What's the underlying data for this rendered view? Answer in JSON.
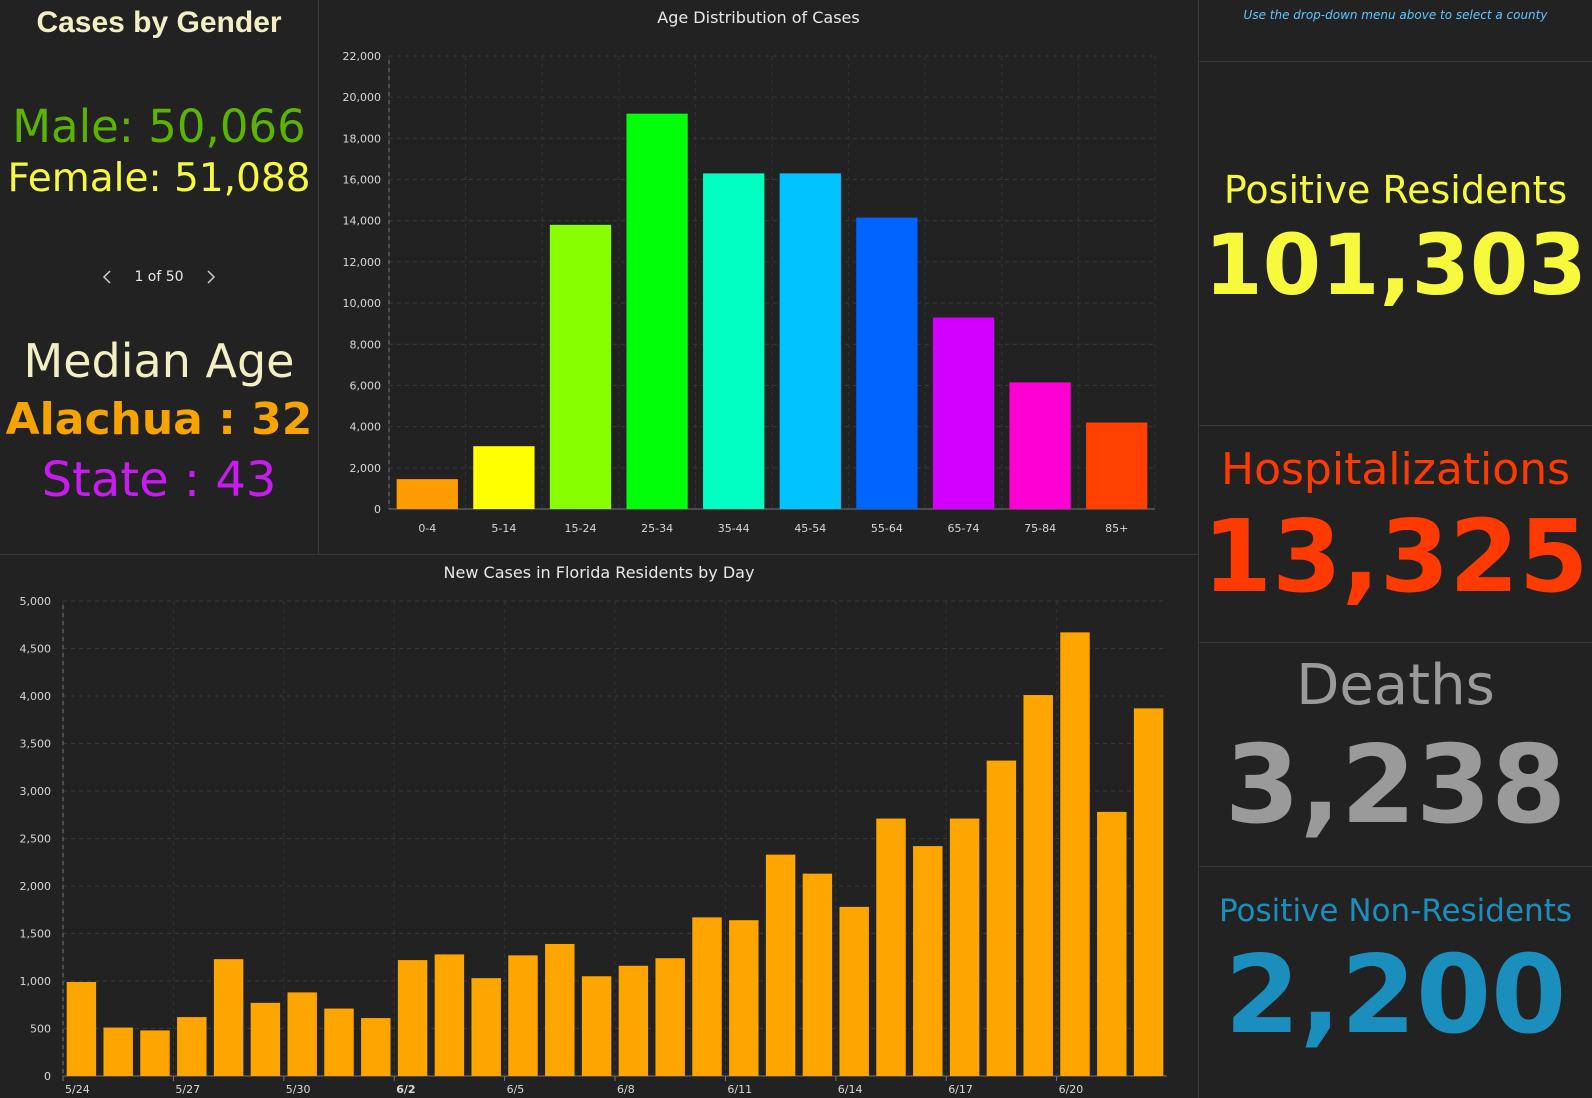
{
  "gender": {
    "title": "Cases by Gender",
    "male_label": "Male:",
    "male_value": "50,066",
    "female_label": "Female:",
    "female_value": "51,088",
    "colors": {
      "male": "#5db400",
      "female": "#f7f93c"
    }
  },
  "pager": {
    "text": "1 of 50"
  },
  "median_age": {
    "title": "Median Age",
    "county_label": "Alachua :",
    "county_value": "32",
    "state_label": "State :",
    "state_value": "43"
  },
  "hint": "Use the drop-down menu above to select a county",
  "stats": {
    "positive_label": "Positive Residents",
    "positive_value": "101,303",
    "hosp_label": "Hospitalizations",
    "hosp_value": "13,325",
    "deaths_label": "Deaths",
    "deaths_value": "3,238",
    "nonres_label": "Positive Non-Residents",
    "nonres_value": "2,200"
  },
  "chart_data": [
    {
      "type": "bar",
      "title": "Age Distribution of Cases",
      "categories": [
        "0-4",
        "5-14",
        "15-24",
        "25-34",
        "35-44",
        "45-54",
        "55-64",
        "65-74",
        "75-84",
        "85+"
      ],
      "values": [
        1450,
        3050,
        13800,
        19200,
        16300,
        16300,
        14150,
        9300,
        6150,
        4200
      ],
      "colors": [
        "#ff9d00",
        "#ffff00",
        "#88ff00",
        "#00ff08",
        "#00ffc0",
        "#00c3ff",
        "#0064ff",
        "#d400ff",
        "#ff00d4",
        "#ff4000"
      ],
      "ylim": [
        0,
        22000
      ],
      "yticks": [
        "0",
        "2,000",
        "4,000",
        "6,000",
        "8,000",
        "10,000",
        "12,000",
        "14,000",
        "16,000",
        "18,000",
        "20,000",
        "22,000"
      ],
      "grid": true
    },
    {
      "type": "bar",
      "title": "New Cases in Florida Residents by Day",
      "categories": [
        "5/24",
        "5/25",
        "5/26",
        "5/27",
        "5/28",
        "5/29",
        "5/30",
        "5/31",
        "6/1",
        "6/2",
        "6/3",
        "6/4",
        "6/5",
        "6/6",
        "6/7",
        "6/8",
        "6/9",
        "6/10",
        "6/11",
        "6/12",
        "6/13",
        "6/14",
        "6/15",
        "6/16",
        "6/17",
        "6/18",
        "6/19",
        "6/20",
        "6/21",
        "6/22"
      ],
      "values": [
        990,
        510,
        480,
        620,
        1230,
        770,
        880,
        710,
        610,
        1220,
        1280,
        1030,
        1270,
        1390,
        1050,
        1160,
        1240,
        1670,
        1640,
        2330,
        2130,
        1780,
        2710,
        2420,
        2710,
        3320,
        4010,
        4670,
        2780,
        3870
      ],
      "x_tick_labels": [
        "5/24",
        "5/27",
        "5/30",
        "6/2",
        "6/5",
        "6/8",
        "6/11",
        "6/14",
        "6/17",
        "6/20"
      ],
      "bar_color": "#ffa500",
      "ylim": [
        0,
        5000
      ],
      "yticks": [
        "0",
        "500",
        "1,000",
        "1,500",
        "2,000",
        "2,500",
        "3,000",
        "3,500",
        "4,000",
        "4,500",
        "5,000"
      ],
      "grid": true
    }
  ]
}
